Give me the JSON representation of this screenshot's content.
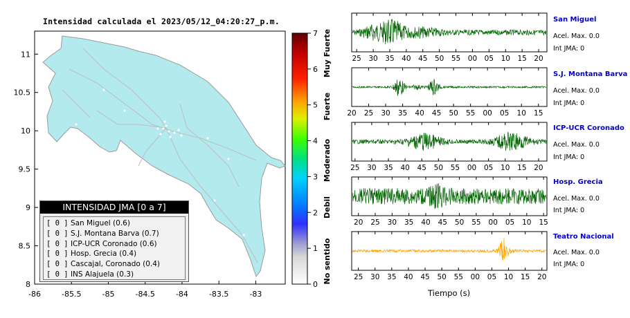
{
  "map": {
    "title": "Intensidad calculada el 2023/05/12_04:20:27_p.m.",
    "x_ticks": [
      "-86",
      "-85.5",
      "-85",
      "-84.5",
      "-84",
      "-83.5",
      "-83"
    ],
    "y_ticks": [
      "11",
      "10.5",
      "10",
      "9.5",
      "9",
      "8.5",
      "8"
    ]
  },
  "colorbar": {
    "ticks": [
      "7",
      "6",
      "5",
      "4",
      "3",
      "2",
      "1",
      "0"
    ],
    "labels": [
      "Muy Fuerte",
      "Fuerte",
      "Moderado",
      "Debil",
      "No sentido"
    ]
  },
  "legend": {
    "header": "INTENSIDAD JMA [0 a 7]",
    "rows": [
      {
        "value": "[ 0 ]",
        "text": "San Miguel (0.6)"
      },
      {
        "value": "[ 0 ]",
        "text": "S.J. Montana Barva (0.7)"
      },
      {
        "value": "[ 0 ]",
        "text": "ICP-UCR Coronado (0.6)"
      },
      {
        "value": "[ 0 ]",
        "text": "Hosp. Grecia (0.4)"
      },
      {
        "value": "[ 0 ]",
        "text": "Cascajal, Coronado (0.4)"
      },
      {
        "value": "[ 0 ]",
        "text": "INS Alajuela (0.3)"
      }
    ]
  },
  "stations": [
    {
      "name": "San Miguel",
      "acc": "Acel. Max. 0.0",
      "int": "Int JMA: 0",
      "color": "#006400",
      "ticks": [
        "25",
        "30",
        "35",
        "40",
        "45",
        "50",
        "55",
        "00",
        "05",
        "10",
        "15",
        "20"
      ],
      "t0": 23.5,
      "t1": 82.5
    },
    {
      "name": "S.J. Montana Barva",
      "acc": "Acel. Max. 0.0",
      "int": "Int JMA: 0",
      "color": "#006400",
      "ticks": [
        "20",
        "25",
        "30",
        "35",
        "40",
        "45",
        "50",
        "55",
        "00",
        "05",
        "10",
        "15"
      ],
      "t0": 20,
      "t1": 77.5
    },
    {
      "name": "ICP-UCR Coronado",
      "acc": "Acel. Max. 0.0",
      "int": "Int JMA: 0",
      "color": "#006400",
      "ticks": [
        "25",
        "30",
        "35",
        "40",
        "45",
        "50",
        "55",
        "00",
        "05",
        "10",
        "15",
        "20"
      ],
      "t0": 24,
      "t1": 82.5
    },
    {
      "name": "Hosp. Grecia",
      "acc": "Acel. Max. 0.0",
      "int": "Int JMA: 0",
      "color": "#006400",
      "ticks": [
        "20",
        "25",
        "30",
        "35",
        "40",
        "45",
        "50",
        "55",
        "00",
        "05",
        "10",
        "15"
      ],
      "t0": 18,
      "t1": 76
    },
    {
      "name": "Teatro Nacional",
      "acc": "Acel. Max. 0.0",
      "int": "Int JMA: 0",
      "color": "#ffa500",
      "ticks": [
        "25",
        "30",
        "35",
        "40",
        "45",
        "50",
        "55",
        "00",
        "05",
        "10",
        "15",
        "20"
      ],
      "t0": 23,
      "t1": 81.5
    }
  ],
  "time_axis_label": "Tiempo (s)",
  "chart_data": {
    "type": "other",
    "title": "Intensidad calculada el 2023/05/12_04:20:27_p.m.",
    "xlim": [
      -86,
      -82.6
    ],
    "ylim": [
      8,
      11.3
    ],
    "colorbar_range": [
      0,
      7
    ],
    "stations": [
      {
        "name": "San Miguel",
        "jma": 0.6
      },
      {
        "name": "S.J. Montana Barva",
        "jma": 0.7
      },
      {
        "name": "ICP-UCR Coronado",
        "jma": 0.6
      },
      {
        "name": "Hosp. Grecia",
        "jma": 0.4
      },
      {
        "name": "Cascajal, Coronado",
        "jma": 0.4
      },
      {
        "name": "INS Alajuela",
        "jma": 0.3
      }
    ]
  }
}
